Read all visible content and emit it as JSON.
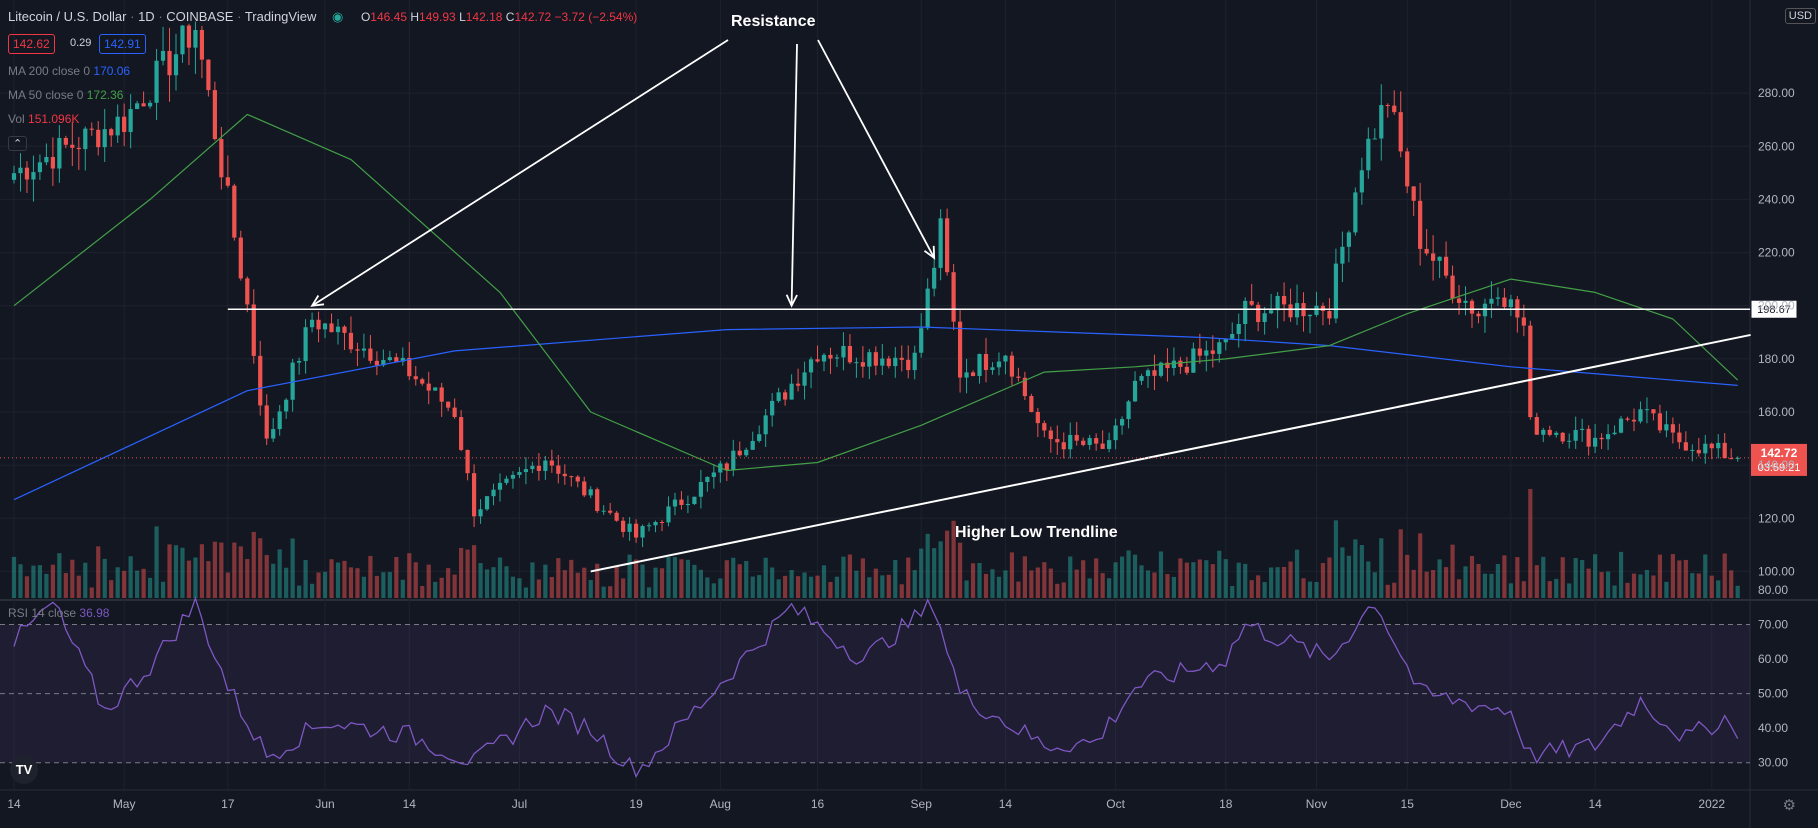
{
  "header": {
    "symbol": "Litecoin / U.S. Dollar",
    "interval": "1D",
    "exchange": "COINBASE",
    "source": "TradingView",
    "o_label": "O",
    "o_value": "146.45",
    "h_label": "H",
    "h_value": "149.93",
    "l_label": "L",
    "l_value": "142.18",
    "c_label": "C",
    "c_value": "142.72",
    "change": "−3.72 (−2.54%)",
    "bid": "142.62",
    "spread": "0.29",
    "ask": "142.91",
    "currency": "USD"
  },
  "indicators": {
    "ma200_label": "MA 200 close 0",
    "ma200_value": "170.06",
    "ma50_label": "MA 50 close 0",
    "ma50_value": "172.36",
    "vol_label": "Vol",
    "vol_value": "151.096K",
    "rsi_label": "RSI 14 close",
    "rsi_value": "36.98"
  },
  "annotations": {
    "resistance": "Resistance",
    "trendline": "Higher Low Trendline"
  },
  "price_labels": {
    "resistance_level": "198.67",
    "last_price": "142.72",
    "countdown": "03:59:21"
  },
  "colors": {
    "up": "#26a69a",
    "down": "#ef5350",
    "ma200": "#2962ff",
    "ma50": "#43a047",
    "rsi": "#7e57c2",
    "background": "#131722"
  },
  "chart_data": [
    {
      "type": "candlestick",
      "title": "Litecoin / U.S. Dollar 1D",
      "ylim": [
        90,
        300
      ],
      "y_ticks": [
        100,
        120,
        140,
        160,
        180,
        200,
        220,
        240,
        260,
        280
      ],
      "x_ticks": [
        "14",
        "May",
        "17",
        "Jun",
        "14",
        "Jul",
        "19",
        "Aug",
        "16",
        "Sep",
        "14",
        "Oct",
        "18",
        "Nov",
        "15",
        "Dec",
        "14",
        "2022"
      ],
      "price_path": [
        {
          "date": "2021-04-14",
          "close": 250
        },
        {
          "date": "2021-05-01",
          "close": 270
        },
        {
          "date": "2021-05-12",
          "close": 305
        },
        {
          "date": "2021-05-20",
          "close": 200
        },
        {
          "date": "2021-05-23",
          "close": 148
        },
        {
          "date": "2021-05-30",
          "close": 195
        },
        {
          "date": "2021-06-14",
          "close": 175
        },
        {
          "date": "2021-06-21",
          "close": 160
        },
        {
          "date": "2021-06-24",
          "close": 123
        },
        {
          "date": "2021-07-05",
          "close": 143
        },
        {
          "date": "2021-07-19",
          "close": 113
        },
        {
          "date": "2021-08-02",
          "close": 140
        },
        {
          "date": "2021-08-16",
          "close": 183
        },
        {
          "date": "2021-08-31",
          "close": 180
        },
        {
          "date": "2021-09-04",
          "close": 228
        },
        {
          "date": "2021-09-07",
          "close": 175
        },
        {
          "date": "2021-09-14",
          "close": 183
        },
        {
          "date": "2021-09-20",
          "close": 150
        },
        {
          "date": "2021-09-30",
          "close": 146
        },
        {
          "date": "2021-10-04",
          "close": 170
        },
        {
          "date": "2021-10-18",
          "close": 185
        },
        {
          "date": "2021-10-21",
          "close": 198
        },
        {
          "date": "2021-11-03",
          "close": 200
        },
        {
          "date": "2021-11-08",
          "close": 255
        },
        {
          "date": "2021-11-12",
          "close": 278
        },
        {
          "date": "2021-11-17",
          "close": 225
        },
        {
          "date": "2021-11-22",
          "close": 207
        },
        {
          "date": "2021-11-26",
          "close": 197
        },
        {
          "date": "2021-11-29",
          "close": 208
        },
        {
          "date": "2021-12-03",
          "close": 192
        },
        {
          "date": "2021-12-04",
          "close": 155
        },
        {
          "date": "2021-12-14",
          "close": 150
        },
        {
          "date": "2021-12-21",
          "close": 160
        },
        {
          "date": "2021-12-26",
          "close": 150
        },
        {
          "date": "2022-01-02",
          "close": 145
        },
        {
          "date": "2022-01-05",
          "close": 142.72
        }
      ],
      "moving_averages": [
        {
          "name": "MA 200 close 0",
          "last": 170.06,
          "points": [
            {
              "date": "2021-04-14",
              "value": 127
            },
            {
              "date": "2021-05-20",
              "value": 168
            },
            {
              "date": "2021-06-21",
              "value": 183
            },
            {
              "date": "2021-08-02",
              "value": 191
            },
            {
              "date": "2021-09-01",
              "value": 192
            },
            {
              "date": "2021-10-15",
              "value": 188
            },
            {
              "date": "2021-11-03",
              "value": 185
            },
            {
              "date": "2021-12-01",
              "value": 177
            },
            {
              "date": "2022-01-05",
              "value": 170
            }
          ]
        },
        {
          "name": "MA 50 close 0",
          "last": 172.36,
          "points": [
            {
              "date": "2021-04-14",
              "value": 200
            },
            {
              "date": "2021-05-05",
              "value": 240
            },
            {
              "date": "2021-05-20",
              "value": 272
            },
            {
              "date": "2021-06-05",
              "value": 255
            },
            {
              "date": "2021-06-28",
              "value": 205
            },
            {
              "date": "2021-07-12",
              "value": 160
            },
            {
              "date": "2021-08-02",
              "value": 138
            },
            {
              "date": "2021-08-16",
              "value": 141
            },
            {
              "date": "2021-09-01",
              "value": 155
            },
            {
              "date": "2021-09-20",
              "value": 175
            },
            {
              "date": "2021-10-04",
              "value": 177
            },
            {
              "date": "2021-10-18",
              "value": 180
            },
            {
              "date": "2021-11-03",
              "value": 185
            },
            {
              "date": "2021-11-15",
              "value": 197
            },
            {
              "date": "2021-12-01",
              "value": 210
            },
            {
              "date": "2021-12-14",
              "value": 205
            },
            {
              "date": "2021-12-26",
              "value": 195
            },
            {
              "date": "2022-01-05",
              "value": 172
            }
          ]
        }
      ],
      "horizontal_line": {
        "value": 198.67,
        "from": "2021-05-17"
      },
      "trendline": {
        "from": {
          "date": "2021-07-12",
          "value": 100
        },
        "to": {
          "date": "2022-01-07",
          "value": 189
        }
      },
      "resistance_points": [
        {
          "date": "2021-05-30",
          "value": 200
        },
        {
          "date": "2021-08-12",
          "value": 200
        },
        {
          "date": "2021-09-03",
          "value": 218
        }
      ]
    },
    {
      "type": "line",
      "title": "RSI 14 close",
      "ylim": [
        25,
        80
      ],
      "y_ticks": [
        30,
        40,
        50,
        60,
        70,
        80
      ],
      "bands": [
        30,
        50,
        70
      ],
      "series": [
        {
          "name": "RSI 14 close",
          "points": [
            {
              "date": "2021-04-14",
              "value": 65
            },
            {
              "date": "2021-04-20",
              "value": 76
            },
            {
              "date": "2021-04-28",
              "value": 45
            },
            {
              "date": "2021-05-05",
              "value": 58
            },
            {
              "date": "2021-05-12",
              "value": 76
            },
            {
              "date": "2021-05-17",
              "value": 52
            },
            {
              "date": "2021-05-23",
              "value": 32
            },
            {
              "date": "2021-06-01",
              "value": 42
            },
            {
              "date": "2021-06-14",
              "value": 38
            },
            {
              "date": "2021-06-24",
              "value": 30
            },
            {
              "date": "2021-07-05",
              "value": 45
            },
            {
              "date": "2021-07-12",
              "value": 40
            },
            {
              "date": "2021-07-19",
              "value": 27
            },
            {
              "date": "2021-08-02",
              "value": 55
            },
            {
              "date": "2021-08-12",
              "value": 75
            },
            {
              "date": "2021-08-23",
              "value": 60
            },
            {
              "date": "2021-09-03",
              "value": 76
            },
            {
              "date": "2021-09-07",
              "value": 50
            },
            {
              "date": "2021-09-20",
              "value": 35
            },
            {
              "date": "2021-09-28",
              "value": 36
            },
            {
              "date": "2021-10-04",
              "value": 52
            },
            {
              "date": "2021-10-18",
              "value": 60
            },
            {
              "date": "2021-10-21",
              "value": 70
            },
            {
              "date": "2021-11-03",
              "value": 60
            },
            {
              "date": "2021-11-10",
              "value": 77
            },
            {
              "date": "2021-11-17",
              "value": 50
            },
            {
              "date": "2021-12-01",
              "value": 45
            },
            {
              "date": "2021-12-04",
              "value": 32
            },
            {
              "date": "2021-12-14",
              "value": 35
            },
            {
              "date": "2021-12-21",
              "value": 48
            },
            {
              "date": "2021-12-28",
              "value": 37
            },
            {
              "date": "2022-01-03",
              "value": 43
            },
            {
              "date": "2022-01-05",
              "value": 36.98
            }
          ]
        }
      ]
    }
  ]
}
